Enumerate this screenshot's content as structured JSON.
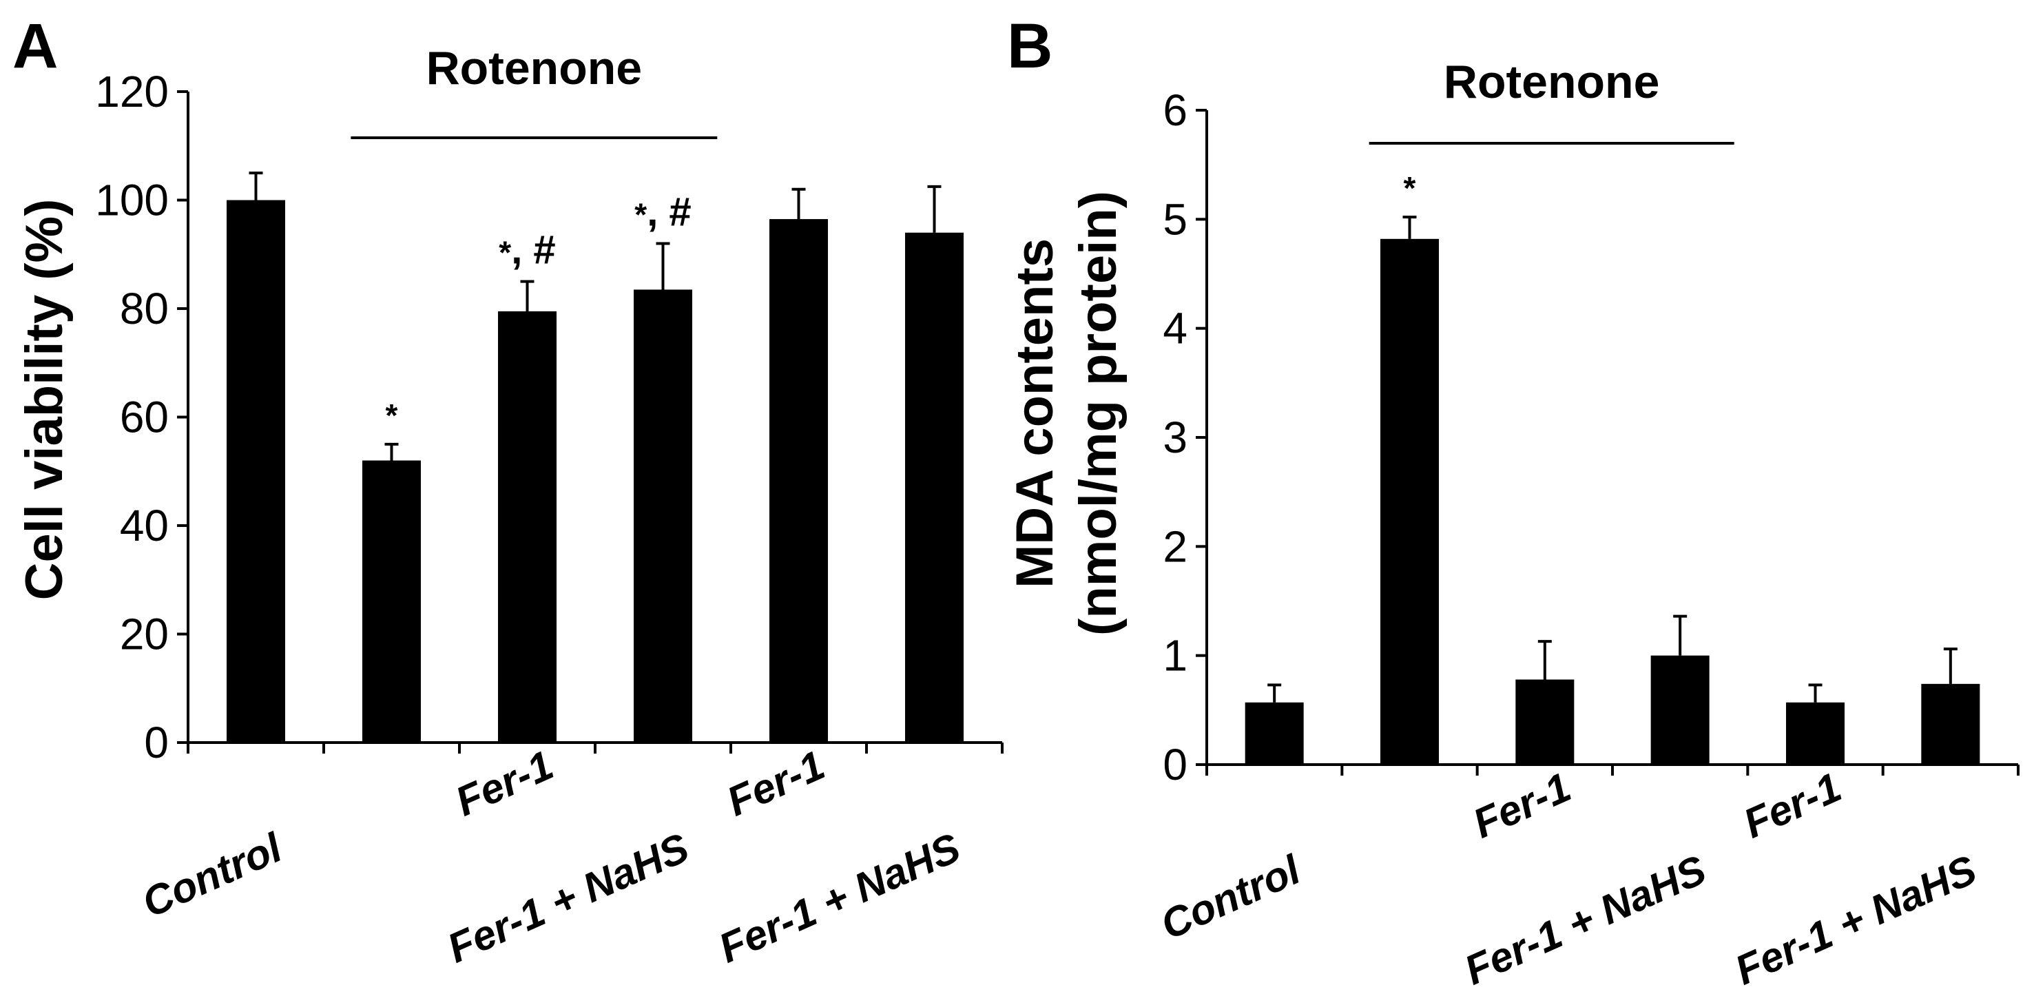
{
  "colors": {
    "bar": "#000000",
    "axis": "#000000",
    "background": "#ffffff"
  },
  "chart_data": [
    {
      "panel": "A",
      "type": "bar",
      "ylabel": "Cell viability (%)",
      "ylim": [
        0,
        120
      ],
      "yticks": [
        0,
        20,
        40,
        60,
        80,
        100,
        120
      ],
      "categories": [
        "Control",
        "",
        "Fer-1",
        "Fer-1 + NaHS",
        "Fer-1",
        "Fer-1 + NaHS"
      ],
      "values": [
        100,
        52,
        79.5,
        83.5,
        96.5,
        94
      ],
      "errors": [
        5,
        3,
        5.5,
        8.5,
        5.5,
        8.5
      ],
      "annotations": [
        "",
        "*",
        "*, #",
        "*, #",
        "",
        ""
      ],
      "group_label": "Rotenone",
      "group_span": [
        1,
        3
      ]
    },
    {
      "panel": "B",
      "type": "bar",
      "ylabel": "MDA contents",
      "ylabel2": "(nmol/mg protein)",
      "ylim": [
        0,
        6
      ],
      "yticks": [
        0,
        1,
        2,
        3,
        4,
        5,
        6
      ],
      "categories": [
        "Control",
        "",
        "Fer-1",
        "Fer-1 + NaHS",
        "Fer-1",
        "Fer-1 + NaHS"
      ],
      "values": [
        0.57,
        4.82,
        0.78,
        1.0,
        0.57,
        0.74
      ],
      "errors": [
        0.16,
        0.2,
        0.35,
        0.36,
        0.16,
        0.32
      ],
      "annotations": [
        "",
        "*",
        "",
        "",
        "",
        ""
      ],
      "group_label": "Rotenone",
      "group_span": [
        1,
        3
      ]
    }
  ]
}
